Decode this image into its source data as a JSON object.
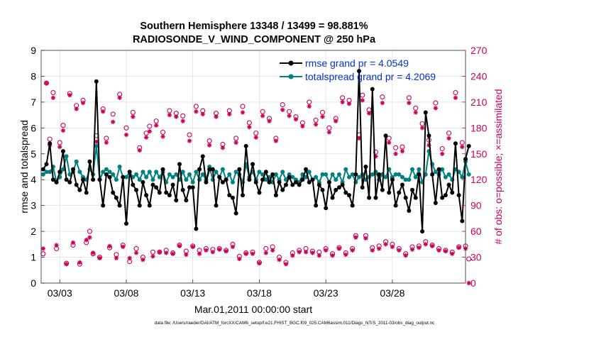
{
  "chart_data": {
    "type": "line",
    "title_line1": "Southern Hemisphere 13348 / 13499 = 98.881%",
    "title_line2": "RADIOSONDE_V_WIND_COMPONENT @ 250 hPa",
    "xlabel": "Mar.01,2011 00:00:00 start",
    "ylabel_left": "rmse and totalspread",
    "ylabel_right": "# of obs: o=possible; ×=assimilated",
    "footer": "data file: /Users/raeder/DAI/ATM_forcXX/CAM6_setup/f.e21.FHIST_BGC.f09_025.CAM6assim.011/Diags_NTrS_2011-03/obs_diag_output.nc",
    "x_range_days": [
      0.6,
      32.5
    ],
    "ylim_left": [
      0,
      9
    ],
    "ylim_right": [
      0,
      270
    ],
    "x_ticks": [
      {
        "day": 2,
        "label": "03/03"
      },
      {
        "day": 7,
        "label": "03/08"
      },
      {
        "day": 12,
        "label": "03/13"
      },
      {
        "day": 17,
        "label": "03/18"
      },
      {
        "day": 22,
        "label": "03/23"
      },
      {
        "day": 27,
        "label": "03/28"
      }
    ],
    "y_ticks_left": [
      "0",
      "1",
      "2",
      "3",
      "4",
      "5",
      "6",
      "7",
      "8",
      "9"
    ],
    "y_ticks_right": [
      "0",
      "30",
      "60",
      "90",
      "120",
      "150",
      "180",
      "210",
      "240",
      "270"
    ],
    "colors": {
      "rmse": "#000000",
      "spread": "#008080",
      "obs": "#cc0055",
      "legend_text": "#0033cc"
    },
    "x_start_day": 0.75,
    "x_step_days": 0.25,
    "series": [
      {
        "name": "rmse grand pr = 4.0549",
        "key": "rmse",
        "values": [
          4.4,
          4.6,
          5.4,
          4.0,
          3.9,
          4.3,
          5.1,
          4.0,
          3.9,
          4.4,
          3.8,
          3.6,
          4.0,
          3.5,
          4.7,
          4.0,
          7.8,
          4.0,
          3.0,
          4.2,
          4.1,
          3.5,
          3.3,
          3.0,
          4.1,
          2.3,
          4.3,
          3.8,
          3.6,
          3.0,
          3.9,
          3.4,
          3.0,
          3.8,
          3.7,
          3.5,
          4.4,
          3.5,
          3.4,
          3.8,
          3.2,
          4.6,
          3.6,
          3.2,
          3.7,
          3.7,
          2.1,
          4.4,
          4.9,
          3.9,
          4.4,
          4.4,
          3.0,
          4.1,
          3.9,
          4.0,
          3.4,
          3.3,
          2.7,
          4.4,
          3.4,
          5.3,
          4.0,
          4.6,
          3.9,
          3.5,
          4.0,
          4.3,
          3.9,
          4.2,
          3.4,
          3.9,
          3.6,
          3.8,
          4.1,
          3.8,
          3.9,
          3.8,
          4.0,
          4.4,
          3.9,
          4.0,
          3.0,
          3.8,
          3.6,
          2.9,
          3.9,
          3.3,
          3.6,
          3.7,
          3.8,
          3.5,
          3.4,
          3.0,
          4.2,
          8.2,
          3.7,
          4.5,
          3.3,
          7.5,
          3.3,
          4.2,
          3.6,
          5.7,
          3.5,
          4.0,
          3.0,
          3.5,
          3.8,
          3.3,
          2.8,
          3.6,
          3.3,
          4.2,
          2.0,
          6.6,
          5.7,
          4.2,
          3.1,
          4.4,
          3.3,
          3.4,
          3.8,
          3.5,
          5.4,
          3.4,
          2.4,
          4.8,
          5.3
        ]
      },
      {
        "name": "totalspread grand pr = 4.2069",
        "key": "spread",
        "values": [
          4.2,
          4.3,
          4.3,
          4.5,
          3.9,
          4.1,
          4.4,
          4.9,
          4.2,
          4.3,
          4.7,
          4.3,
          4.1,
          4.0,
          4.4,
          4.2,
          5.3,
          4.0,
          4.3,
          4.4,
          4.3,
          4.2,
          4.0,
          4.5,
          4.1,
          4.1,
          4.3,
          4.1,
          4.2,
          4.0,
          4.3,
          4.1,
          4.3,
          4.0,
          4.3,
          4.1,
          4.3,
          3.9,
          4.2,
          4.1,
          4.2,
          4.0,
          4.3,
          4.0,
          4.2,
          3.9,
          4.3,
          4.0,
          4.2,
          4.0,
          4.5,
          4.0,
          4.3,
          4.1,
          4.4,
          4.0,
          4.2,
          3.9,
          4.3,
          4.2,
          3.9,
          4.6,
          4.1,
          4.3,
          4.0,
          4.3,
          4.2,
          4.0,
          4.1,
          3.9,
          4.2,
          4.0,
          4.3,
          4.0,
          4.2,
          4.1,
          4.0,
          3.9,
          4.2,
          4.1,
          4.3,
          4.0,
          4.1,
          3.9,
          4.2,
          4.2,
          3.9,
          4.2,
          4.0,
          4.2,
          3.9,
          4.4,
          4.1,
          4.2,
          3.9,
          4.1,
          4.2,
          4.0,
          4.1,
          4.2,
          4.3,
          4.0,
          4.2,
          4.1,
          4.4,
          4.1,
          4.2,
          4.2,
          4.1,
          4.0,
          4.0,
          4.4,
          4.1,
          4.4,
          3.9,
          4.2,
          5.1,
          4.6,
          4.3,
          4.2,
          4.4,
          4.1,
          4.2,
          4.0,
          4.4,
          4.3,
          4.1,
          4.7,
          4.2
        ]
      },
      {
        "name": "obs possible",
        "key": "possible",
        "values": [
          34,
          232,
          167,
          221,
          40,
          163,
          183,
          23,
          220,
          44,
          206,
          22,
          212,
          47,
          60,
          34,
          171,
          30,
          202,
          168,
          41,
          196,
          33,
          219,
          44,
          180,
          25,
          198,
          40,
          157,
          30,
          174,
          182,
          36,
          188,
          36,
          175,
          38,
          200,
          35,
          197,
          44,
          194,
          37,
          172,
          43,
          205,
          38,
          200,
          40,
          165,
          39,
          197,
          40,
          161,
          38,
          200,
          45,
          168,
          31,
          205,
          35,
          186,
          36,
          174,
          24,
          199,
          40,
          191,
          42,
          168,
          30,
          207,
          24,
          199,
          35,
          193,
          38,
          186,
          40,
          210,
          37,
          189,
          36,
          198,
          40,
          180,
          34,
          191,
          41,
          215,
          35,
          212,
          40,
          55,
          172,
          218,
          55,
          201,
          41,
          152,
          43,
          216,
          48,
          168,
          45,
          157,
          40,
          158,
          34,
          215,
          42,
          203,
          43,
          185,
          48,
          166,
          44,
          209,
          40,
          156,
          38,
          174,
          36,
          221,
          42,
          163,
          43,
          28
        ]
      },
      {
        "name": "obs assimilated",
        "key": "assimilated",
        "values": [
          40,
          232,
          160,
          215,
          44,
          158,
          177,
          22,
          218,
          47,
          202,
          24,
          209,
          50,
          53,
          35,
          164,
          29,
          199,
          163,
          43,
          187,
          29,
          215,
          42,
          172,
          29,
          193,
          35,
          154,
          27,
          169,
          176,
          31,
          183,
          36,
          170,
          35,
          195,
          34,
          193,
          43,
          188,
          33,
          165,
          42,
          199,
          34,
          196,
          38,
          160,
          36,
          193,
          39,
          157,
          37,
          196,
          42,
          163,
          28,
          198,
          34,
          181,
          34,
          169,
          23,
          194,
          35,
          188,
          38,
          165,
          27,
          201,
          22,
          194,
          32,
          190,
          36,
          182,
          36,
          205,
          35,
          184,
          32,
          193,
          38,
          175,
          32,
          188,
          40,
          210,
          33,
          208,
          38,
          53,
          168,
          212,
          52,
          197,
          38,
          147,
          40,
          209,
          45,
          163,
          42,
          150,
          38,
          153,
          32,
          209,
          39,
          198,
          41,
          180,
          45,
          160,
          43,
          203,
          38,
          150,
          37,
          168,
          34,
          215,
          41,
          158,
          40,
          0
        ]
      }
    ]
  }
}
